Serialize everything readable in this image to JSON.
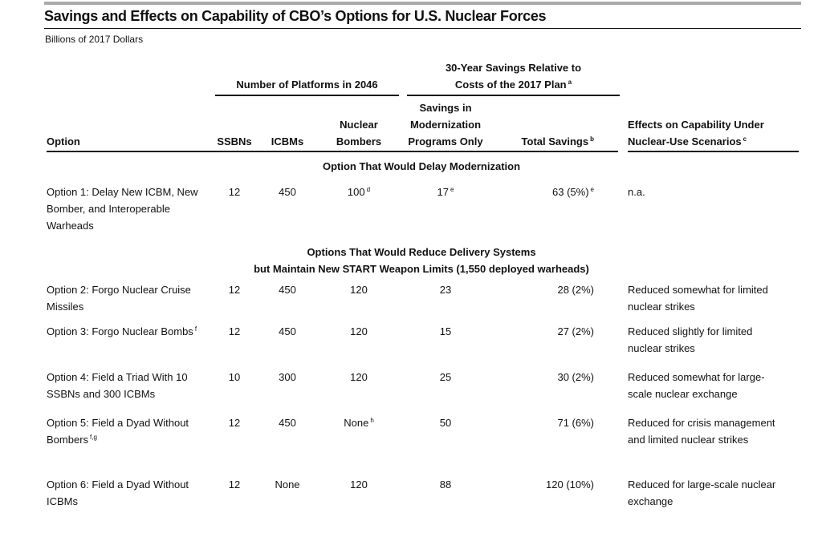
{
  "title": "Savings and Effects on Capability of CBO’s Options for U.S. Nuclear Forces",
  "subtitle": "Billions of 2017 Dollars",
  "table": {
    "group_headers": [
      {
        "text": "Number of Platforms in 2046"
      },
      {
        "text": "30-Year Savings Relative to Costs of the 2017 Plan",
        "note": "a"
      }
    ],
    "columns": [
      {
        "text": "Option"
      },
      {
        "text": "SSBNs"
      },
      {
        "text": "ICBMs"
      },
      {
        "text": "Nuclear Bombers"
      },
      {
        "text": "Savings in Modernization Programs Only"
      },
      {
        "text": "Total Savings",
        "note": "b"
      },
      {
        "text": "Effects on Capability Under Nuclear-Use Scenarios",
        "note": "c"
      }
    ],
    "sections": [
      {
        "heading": [
          "Option That Would Delay Modernization"
        ],
        "rows": [
          [
            {
              "text": "Option 1: Delay New ICBM, New Bomber, and Interoperable Warheads"
            },
            {
              "text": "12"
            },
            {
              "text": "450"
            },
            {
              "text": "100",
              "note": "d"
            },
            {
              "text": "17",
              "note": "e"
            },
            {
              "text": "63 (5%)",
              "note": "e"
            },
            {
              "text": "n.a."
            }
          ]
        ]
      },
      {
        "heading": [
          "Options That Would Reduce Delivery Systems",
          "but Maintain New START Weapon Limits (1,550 deployed warheads)"
        ],
        "rows": [
          [
            {
              "text": "Option 2: Forgo Nuclear Cruise Missiles"
            },
            {
              "text": "12"
            },
            {
              "text": "450"
            },
            {
              "text": "120"
            },
            {
              "text": "23"
            },
            {
              "text": "28 (2%)"
            },
            {
              "text": "Reduced somewhat for limited nuclear strikes"
            }
          ],
          [
            {
              "text": "Option 3: Forgo Nuclear Bombs",
              "note": "f"
            },
            {
              "text": "12"
            },
            {
              "text": "450"
            },
            {
              "text": "120"
            },
            {
              "text": "15"
            },
            {
              "text": "27 (2%)"
            },
            {
              "text": "Reduced slightly for limited nuclear strikes"
            }
          ],
          [
            {
              "text": "Option 4: Field a Triad With 10 SSBNs and 300 ICBMs"
            },
            {
              "text": "10"
            },
            {
              "text": "300"
            },
            {
              "text": "120"
            },
            {
              "text": "25"
            },
            {
              "text": "30 (2%)"
            },
            {
              "text": "Reduced somewhat for large-scale nuclear exchange"
            }
          ],
          [
            {
              "text": "Option 5: Field a Dyad Without Bombers",
              "note": "f,g"
            },
            {
              "text": "12"
            },
            {
              "text": "450"
            },
            {
              "text": "None",
              "note": "h"
            },
            {
              "text": "50"
            },
            {
              "text": "71 (6%)"
            },
            {
              "text": "Reduced for crisis management and limited nuclear strikes"
            }
          ],
          [
            {
              "text": "Option 6: Field a Dyad Without ICBMs"
            },
            {
              "text": "12"
            },
            {
              "text": "None"
            },
            {
              "text": "120"
            },
            {
              "text": "88"
            },
            {
              "text": "120 (10%)"
            },
            {
              "text": "Reduced for large-scale nuclear exchange"
            }
          ]
        ]
      }
    ]
  }
}
